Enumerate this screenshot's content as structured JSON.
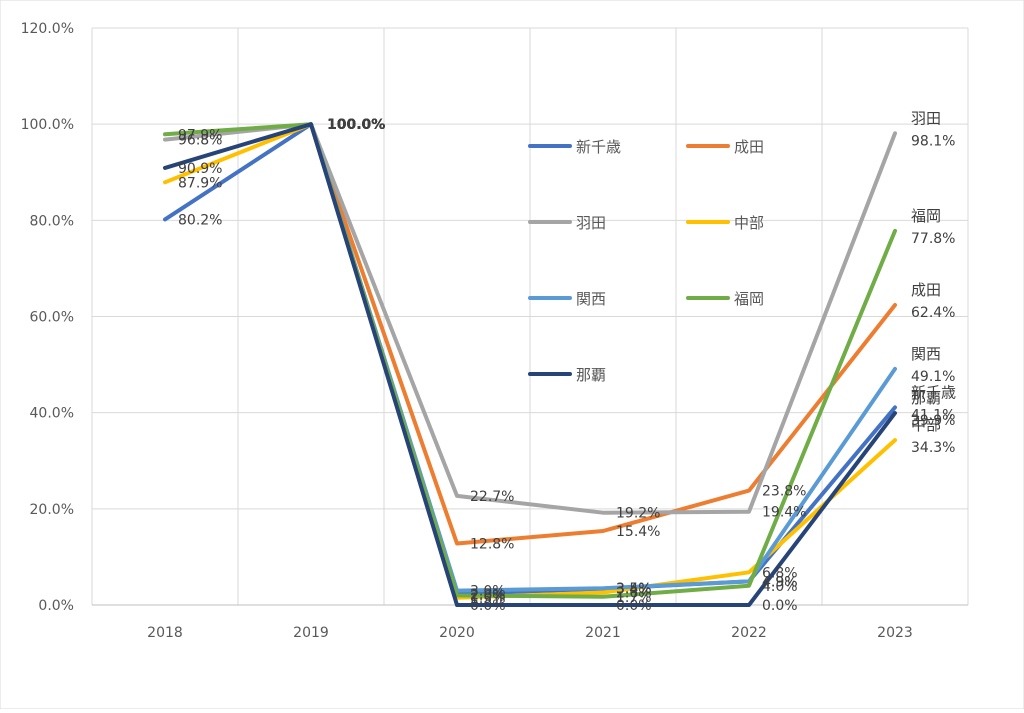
{
  "chart_data": {
    "type": "line",
    "title": "",
    "xlabel": "",
    "ylabel": "",
    "x": [
      "2018",
      "2019",
      "2020",
      "2021",
      "2022",
      "2023"
    ],
    "ylim": [
      0,
      120
    ],
    "yticks": [
      0,
      20,
      40,
      60,
      80,
      100,
      120
    ],
    "ytick_labels": [
      "0.0%",
      "20.0%",
      "40.0%",
      "60.0%",
      "80.0%",
      "100.0%",
      "120.0%"
    ],
    "grid": true,
    "legend_position": "inside-center",
    "series": [
      {
        "name": "新千歳",
        "color": "#4472C4",
        "values": [
          80.2,
          100.0,
          2.3,
          3.4,
          4.9,
          41.1
        ],
        "labels": [
          "80.2%",
          "100.0%",
          "2.3%",
          "3.4%",
          "4.9%",
          "41.1%"
        ]
      },
      {
        "name": "成田",
        "color": "#ED7D31",
        "values": [
          null,
          100.0,
          12.8,
          15.4,
          23.8,
          62.4
        ],
        "labels": [
          "",
          "100.0%",
          "12.8%",
          "15.4%",
          "23.8%",
          "62.4%"
        ]
      },
      {
        "name": "羽田",
        "color": "#A5A5A5",
        "values": [
          96.8,
          100.0,
          22.7,
          19.2,
          19.4,
          98.1
        ],
        "labels": [
          "96.8%",
          "100.0%",
          "22.7%",
          "19.2%",
          "19.4%",
          "98.1%"
        ]
      },
      {
        "name": "中部",
        "color": "#FFC000",
        "values": [
          87.9,
          100.0,
          1.5,
          2.6,
          6.8,
          34.3
        ],
        "labels": [
          "87.9%",
          "100.0%",
          "1.5%",
          "2.6%",
          "6.8%",
          "34.3%"
        ]
      },
      {
        "name": "関西",
        "color": "#5B9BD5",
        "values": [
          null,
          100.0,
          3.0,
          3.5,
          4.9,
          49.1
        ],
        "labels": [
          "",
          "100.0%",
          "3.0%",
          "3.5%",
          "4.9%",
          "49.1%"
        ]
      },
      {
        "name": "福岡",
        "color": "#70AD47",
        "values": [
          97.9,
          100.0,
          2.0,
          1.7,
          4.0,
          77.8
        ],
        "labels": [
          "97.9%",
          "100.0%",
          "2.0%",
          "1.7%",
          "4.0%",
          "77.8%"
        ]
      },
      {
        "name": "那覇",
        "color": "#264478",
        "values": [
          90.9,
          100.0,
          0.0,
          0.0,
          0.0,
          39.9
        ],
        "labels": [
          "90.9%",
          "100.0%",
          "0.0%",
          "0.0%",
          "0.0%",
          "39.9%"
        ]
      }
    ]
  }
}
